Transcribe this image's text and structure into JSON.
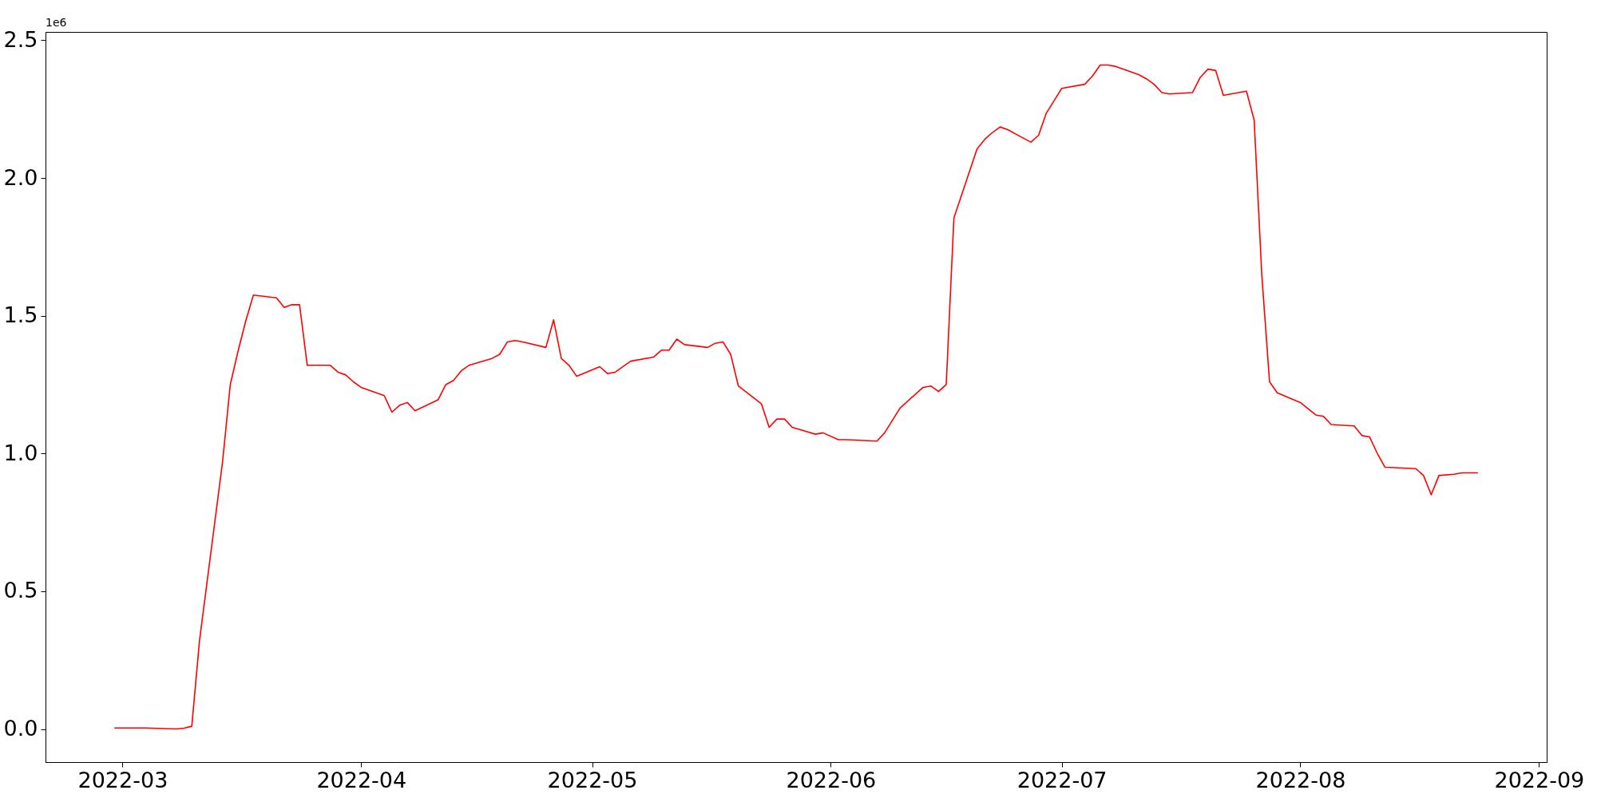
{
  "chart_data": {
    "type": "line",
    "annotations": [
      "1e6"
    ],
    "x": [
      "2022-02-28",
      "2022-03-04",
      "2022-03-08",
      "2022-03-09",
      "2022-03-10",
      "2022-03-11",
      "2022-03-14",
      "2022-03-15",
      "2022-03-16",
      "2022-03-17",
      "2022-03-18",
      "2022-03-21",
      "2022-03-22",
      "2022-03-23",
      "2022-03-24",
      "2022-03-25",
      "2022-03-28",
      "2022-03-29",
      "2022-03-30",
      "2022-03-31",
      "2022-04-01",
      "2022-04-04",
      "2022-04-05",
      "2022-04-06",
      "2022-04-07",
      "2022-04-08",
      "2022-04-11",
      "2022-04-12",
      "2022-04-13",
      "2022-04-14",
      "2022-04-15",
      "2022-04-18",
      "2022-04-19",
      "2022-04-20",
      "2022-04-21",
      "2022-04-22",
      "2022-04-25",
      "2022-04-26",
      "2022-04-27",
      "2022-04-28",
      "2022-04-29",
      "2022-05-02",
      "2022-05-03",
      "2022-05-04",
      "2022-05-06",
      "2022-05-09",
      "2022-05-10",
      "2022-05-11",
      "2022-05-12",
      "2022-05-13",
      "2022-05-16",
      "2022-05-17",
      "2022-05-18",
      "2022-05-19",
      "2022-05-20",
      "2022-05-23",
      "2022-05-24",
      "2022-05-25",
      "2022-05-26",
      "2022-05-27",
      "2022-05-30",
      "2022-05-31",
      "2022-06-02",
      "2022-06-03",
      "2022-06-07",
      "2022-06-08",
      "2022-06-09",
      "2022-06-10",
      "2022-06-13",
      "2022-06-14",
      "2022-06-15",
      "2022-06-16",
      "2022-06-17",
      "2022-06-20",
      "2022-06-21",
      "2022-06-22",
      "2022-06-23",
      "2022-06-24",
      "2022-06-27",
      "2022-06-28",
      "2022-06-29",
      "2022-06-30",
      "2022-07-01",
      "2022-07-04",
      "2022-07-05",
      "2022-07-06",
      "2022-07-07",
      "2022-07-08",
      "2022-07-11",
      "2022-07-12",
      "2022-07-13",
      "2022-07-14",
      "2022-07-15",
      "2022-07-18",
      "2022-07-19",
      "2022-07-20",
      "2022-07-21",
      "2022-07-22",
      "2022-07-25",
      "2022-07-26",
      "2022-07-27",
      "2022-07-28",
      "2022-07-29",
      "2022-08-01",
      "2022-08-03",
      "2022-08-04",
      "2022-08-05",
      "2022-08-08",
      "2022-08-09",
      "2022-08-10",
      "2022-08-11",
      "2022-08-12",
      "2022-08-16",
      "2022-08-17",
      "2022-08-18",
      "2022-08-19",
      "2022-08-21",
      "2022-08-22",
      "2022-08-24"
    ],
    "series": [
      {
        "color": "#ff0000",
        "values": [
          0.004,
          0.004,
          0.0,
          0.003,
          0.01,
          0.32,
          0.97,
          1.25,
          1.37,
          1.48,
          1.575,
          1.565,
          1.53,
          1.54,
          1.54,
          1.32,
          1.32,
          1.295,
          1.285,
          1.26,
          1.24,
          1.21,
          1.15,
          1.175,
          1.185,
          1.155,
          1.195,
          1.25,
          1.265,
          1.3,
          1.32,
          1.345,
          1.36,
          1.405,
          1.41,
          1.405,
          1.385,
          1.485,
          1.345,
          1.32,
          1.28,
          1.315,
          1.29,
          1.295,
          1.335,
          1.35,
          1.375,
          1.375,
          1.415,
          1.395,
          1.385,
          1.4,
          1.405,
          1.36,
          1.245,
          1.18,
          1.095,
          1.125,
          1.125,
          1.095,
          1.07,
          1.075,
          1.05,
          1.05,
          1.045,
          1.075,
          1.12,
          1.165,
          1.24,
          1.245,
          1.225,
          1.25,
          1.855,
          2.105,
          2.14,
          2.165,
          2.185,
          2.175,
          2.13,
          2.155,
          2.235,
          2.28,
          2.325,
          2.34,
          2.37,
          2.41,
          2.41,
          2.405,
          2.375,
          2.36,
          2.34,
          2.31,
          2.305,
          2.31,
          2.365,
          2.395,
          2.39,
          2.3,
          2.315,
          2.21,
          1.645,
          1.26,
          1.22,
          1.185,
          1.14,
          1.135,
          1.105,
          1.1,
          1.065,
          1.06,
          1.0,
          0.95,
          0.945,
          0.92,
          0.85,
          0.92,
          0.925,
          0.93,
          0.93
        ]
      }
    ],
    "xlim": [
      "2022-02-19",
      "2022-09-02"
    ],
    "xticks": [
      "2022-03",
      "2022-04",
      "2022-05",
      "2022-06",
      "2022-07",
      "2022-08",
      "2022-09"
    ],
    "ylim": [
      -0.12,
      2.53
    ],
    "yticks": [
      {
        "value": 0,
        "label": "0.0"
      },
      {
        "value": 0.5,
        "label": "0.5"
      },
      {
        "value": 1,
        "label": "1.0"
      },
      {
        "value": 1.5,
        "label": "1.5"
      },
      {
        "value": 2,
        "label": "2.0"
      },
      {
        "value": 2.5,
        "label": "2.5"
      }
    ],
    "grid": false
  }
}
